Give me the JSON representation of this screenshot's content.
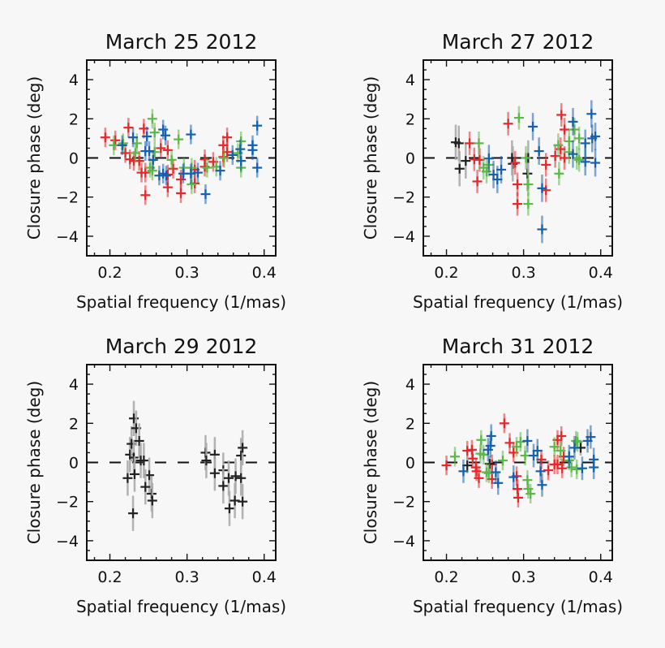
{
  "chart_data": [
    {
      "type": "scatter",
      "title": "March 25 2012",
      "xlabel": "Spatial frequency (1/mas)",
      "ylabel": "Closure phase (deg)",
      "xlim": [
        0.17,
        0.415
      ],
      "ylim": [
        -5,
        5
      ],
      "xticks": [
        "0.2",
        "0.3",
        "0.4"
      ],
      "yticks": [
        "-4",
        "-2",
        "0",
        "2",
        "4"
      ],
      "reference_line": 0,
      "series": [
        {
          "color": "#e8272a",
          "err": 0.5,
          "points": [
            [
              0.194,
              1.05
            ],
            [
              0.207,
              0.9
            ],
            [
              0.224,
              1.55
            ],
            [
              0.22,
              0.25
            ],
            [
              0.226,
              -0.07
            ],
            [
              0.231,
              -0.15
            ],
            [
              0.238,
              -0.15
            ],
            [
              0.241,
              -0.75
            ],
            [
              0.246,
              -0.75
            ],
            [
              0.244,
              1.5
            ],
            [
              0.246,
              -1.9
            ],
            [
              0.266,
              0.5
            ],
            [
              0.275,
              0.4
            ],
            [
              0.275,
              -0.85
            ],
            [
              0.275,
              -1.5
            ],
            [
              0.282,
              -0.55
            ],
            [
              0.292,
              -1.1
            ],
            [
              0.292,
              -1.8
            ],
            [
              0.31,
              -0.6
            ],
            [
              0.31,
              -1.3
            ],
            [
              0.323,
              -0.07
            ],
            [
              0.323,
              -0.45
            ],
            [
              0.334,
              -0.2
            ],
            [
              0.347,
              0.65
            ],
            [
              0.352,
              1.05
            ],
            [
              0.352,
              0.3
            ],
            [
              0.347,
              0.05
            ]
          ]
        },
        {
          "color": "#5cb848",
          "err": 0.5,
          "points": [
            [
              0.205,
              0.65
            ],
            [
              0.217,
              0.75
            ],
            [
              0.235,
              0.75
            ],
            [
              0.233,
              0.25
            ],
            [
              0.255,
              2.0
            ],
            [
              0.258,
              1.3
            ],
            [
              0.258,
              0.3
            ],
            [
              0.252,
              -0.5
            ],
            [
              0.255,
              -0.65
            ],
            [
              0.289,
              0.95
            ],
            [
              0.28,
              -0.1
            ],
            [
              0.296,
              -0.5
            ],
            [
              0.306,
              -1.35
            ],
            [
              0.306,
              -0.5
            ],
            [
              0.326,
              -0.5
            ],
            [
              0.338,
              -0.45
            ],
            [
              0.348,
              0
            ],
            [
              0.366,
              0.25
            ],
            [
              0.37,
              0.85
            ],
            [
              0.37,
              -0.5
            ]
          ]
        },
        {
          "color": "#1760b0",
          "err": 0.5,
          "points": [
            [
              0.216,
              0.65
            ],
            [
              0.23,
              1.05
            ],
            [
              0.248,
              1.1
            ],
            [
              0.246,
              0.35
            ],
            [
              0.251,
              0.35
            ],
            [
              0.256,
              -0.1
            ],
            [
              0.269,
              1.45
            ],
            [
              0.272,
              1.15
            ],
            [
              0.264,
              -0.9
            ],
            [
              0.269,
              -0.8
            ],
            [
              0.273,
              -0.9
            ],
            [
              0.305,
              1.2
            ],
            [
              0.295,
              -0.8
            ],
            [
              0.305,
              -0.8
            ],
            [
              0.314,
              -0.75
            ],
            [
              0.324,
              -1.85
            ],
            [
              0.343,
              -0.65
            ],
            [
              0.359,
              0.15
            ],
            [
              0.369,
              0.45
            ],
            [
              0.37,
              -0.15
            ],
            [
              0.385,
              0.65
            ],
            [
              0.385,
              0.4
            ],
            [
              0.391,
              1.65
            ],
            [
              0.391,
              -0.5
            ]
          ]
        }
      ]
    },
    {
      "type": "scatter",
      "title": "March 27 2012",
      "xlabel": "Spatial frequency (1/mas)",
      "ylabel": "Closure phase (deg)",
      "xlim": [
        0.17,
        0.415
      ],
      "ylim": [
        -5,
        5
      ],
      "xticks": [
        "0.2",
        "0.3",
        "0.4"
      ],
      "yticks": [
        "-4",
        "-2",
        "0",
        "2",
        "4"
      ],
      "reference_line": 0,
      "series": [
        {
          "color": "#222222",
          "err": 0.9,
          "points": [
            [
              0.212,
              0.8
            ],
            [
              0.216,
              0.75
            ],
            [
              0.217,
              -0.55
            ],
            [
              0.225,
              -0.15
            ],
            [
              0.286,
              -0.3
            ],
            [
              0.285,
              0
            ],
            [
              0.305,
              -0.8
            ],
            [
              0.306,
              0
            ]
          ]
        },
        {
          "color": "#e8272a",
          "err": 0.6,
          "points": [
            [
              0.23,
              0.75
            ],
            [
              0.236,
              -0.07
            ],
            [
              0.243,
              -0.1
            ],
            [
              0.24,
              -1.2
            ],
            [
              0.28,
              1.75
            ],
            [
              0.289,
              -0.25
            ],
            [
              0.292,
              -1.35
            ],
            [
              0.292,
              -2.35
            ],
            [
              0.329,
              -0.35
            ],
            [
              0.329,
              -1.65
            ],
            [
              0.341,
              0.1
            ],
            [
              0.348,
              0.45
            ],
            [
              0.349,
              2.2
            ],
            [
              0.353,
              1.45
            ],
            [
              0.353,
              0
            ]
          ]
        },
        {
          "color": "#5cb848",
          "err": 0.6,
          "points": [
            [
              0.242,
              0.75
            ],
            [
              0.248,
              -0.5
            ],
            [
              0.252,
              -0.7
            ],
            [
              0.255,
              -0.35
            ],
            [
              0.294,
              2.05
            ],
            [
              0.303,
              0
            ],
            [
              0.306,
              -1.35
            ],
            [
              0.306,
              -2.35
            ],
            [
              0.345,
              0.65
            ],
            [
              0.346,
              -0.8
            ],
            [
              0.359,
              0.85
            ],
            [
              0.366,
              1.45
            ],
            [
              0.369,
              0
            ],
            [
              0.372,
              1.0
            ],
            [
              0.372,
              -0.1
            ],
            [
              0.359,
              0.3
            ]
          ]
        },
        {
          "color": "#1760b0",
          "err": 0.7,
          "points": [
            [
              0.255,
              -0.03
            ],
            [
              0.261,
              -0.85
            ],
            [
              0.266,
              -1.1
            ],
            [
              0.271,
              -0.6
            ],
            [
              0.312,
              1.6
            ],
            [
              0.32,
              0.35
            ],
            [
              0.324,
              -1.55
            ],
            [
              0.324,
              -3.65
            ],
            [
              0.364,
              1.85
            ],
            [
              0.364,
              0.2
            ],
            [
              0.38,
              0.75
            ],
            [
              0.38,
              -0.2
            ],
            [
              0.388,
              2.25
            ],
            [
              0.389,
              1.0
            ],
            [
              0.393,
              1.1
            ],
            [
              0.393,
              -0.25
            ]
          ]
        }
      ]
    },
    {
      "type": "scatter",
      "title": "March 29 2012",
      "xlabel": "Spatial frequency (1/mas)",
      "ylabel": "Closure phase (deg)",
      "xlim": [
        0.17,
        0.415
      ],
      "ylim": [
        -5,
        5
      ],
      "xticks": [
        "0.2",
        "0.3",
        "0.4"
      ],
      "yticks": [
        "-4",
        "-2",
        "0",
        "2",
        "4"
      ],
      "reference_line": 0,
      "series": [
        {
          "color": "#222222",
          "err": 0.9,
          "points": [
            [
              0.223,
              -0.8
            ],
            [
              0.226,
              0.4
            ],
            [
              0.228,
              0.95
            ],
            [
              0.231,
              2.25
            ],
            [
              0.234,
              1.75
            ],
            [
              0.231,
              0.25
            ],
            [
              0.232,
              -0.6
            ],
            [
              0.23,
              -2.6
            ],
            [
              0.238,
              1.1
            ],
            [
              0.24,
              0.1
            ],
            [
              0.244,
              0.1
            ],
            [
              0.251,
              -0.65
            ],
            [
              0.246,
              -1.25
            ],
            [
              0.254,
              -1.6
            ],
            [
              0.255,
              -1.95
            ],
            [
              0.324,
              0.5
            ],
            [
              0.325,
              0.1
            ],
            [
              0.336,
              0.4
            ],
            [
              0.336,
              -0.55
            ],
            [
              0.347,
              -0.4
            ],
            [
              0.347,
              -1.2
            ],
            [
              0.354,
              -0.8
            ],
            [
              0.355,
              -2.35
            ],
            [
              0.363,
              -0.7
            ],
            [
              0.362,
              -1.95
            ],
            [
              0.37,
              0.35
            ],
            [
              0.37,
              -0.8
            ],
            [
              0.372,
              0.75
            ],
            [
              0.372,
              -2.0
            ]
          ]
        }
      ]
    },
    {
      "type": "scatter",
      "title": "March 31 2012",
      "xlabel": "Spatial frequency (1/mas)",
      "ylabel": "Closure phase (deg)",
      "xlim": [
        0.17,
        0.415
      ],
      "ylim": [
        -5,
        5
      ],
      "xticks": [
        "0.2",
        "0.3",
        "0.4"
      ],
      "yticks": [
        "-4",
        "-2",
        "0",
        "2",
        "4"
      ],
      "reference_line": 0,
      "series": [
        {
          "color": "#e8272a",
          "err": 0.5,
          "points": [
            [
              0.2,
              -0.15
            ],
            [
              0.227,
              0.6
            ],
            [
              0.233,
              0.65
            ],
            [
              0.234,
              0.2
            ],
            [
              0.238,
              -0.25
            ],
            [
              0.239,
              -0.45
            ],
            [
              0.242,
              -0.8
            ],
            [
              0.259,
              -0.1
            ],
            [
              0.259,
              -0.85
            ],
            [
              0.275,
              2.0
            ],
            [
              0.282,
              1.0
            ],
            [
              0.287,
              0.5
            ],
            [
              0.291,
              -0.7
            ],
            [
              0.292,
              -1.35
            ],
            [
              0.293,
              -1.8
            ],
            [
              0.323,
              0.15
            ],
            [
              0.332,
              -0.4
            ],
            [
              0.34,
              -0.1
            ],
            [
              0.344,
              -0.1
            ],
            [
              0.344,
              1.15
            ],
            [
              0.349,
              1.35
            ],
            [
              0.352,
              0.3
            ],
            [
              0.35,
              -0.3
            ]
          ]
        },
        {
          "color": "#222222",
          "err": 0.4,
          "points": [
            [
              0.227,
              -0.15
            ],
            [
              0.256,
              -0.07
            ],
            [
              0.374,
              0.75
            ]
          ]
        },
        {
          "color": "#5cb848",
          "err": 0.5,
          "points": [
            [
              0.211,
              0.3
            ],
            [
              0.245,
              1.15
            ],
            [
              0.244,
              0.45
            ],
            [
              0.248,
              0.4
            ],
            [
              0.252,
              -0.5
            ],
            [
              0.255,
              -0.55
            ],
            [
              0.273,
              0.1
            ],
            [
              0.291,
              0.8
            ],
            [
              0.296,
              1.05
            ],
            [
              0.302,
              0.35
            ],
            [
              0.305,
              -0.9
            ],
            [
              0.306,
              -1.35
            ],
            [
              0.309,
              -1.6
            ],
            [
              0.34,
              0.8
            ],
            [
              0.348,
              0.6
            ],
            [
              0.359,
              0.1
            ],
            [
              0.362,
              -0.25
            ],
            [
              0.368,
              1.1
            ],
            [
              0.37,
              1.05
            ],
            [
              0.369,
              -0.35
            ]
          ]
        },
        {
          "color": "#1760b0",
          "err": 0.6,
          "points": [
            [
              0.222,
              -0.45
            ],
            [
              0.254,
              0.65
            ],
            [
              0.257,
              0.85
            ],
            [
              0.258,
              1.35
            ],
            [
              0.264,
              -0.5
            ],
            [
              0.267,
              -1.05
            ],
            [
              0.287,
              -0.75
            ],
            [
              0.305,
              1.1
            ],
            [
              0.313,
              0.35
            ],
            [
              0.318,
              0.6
            ],
            [
              0.322,
              -0.45
            ],
            [
              0.324,
              -1.15
            ],
            [
              0.359,
              0.3
            ],
            [
              0.366,
              0.75
            ],
            [
              0.376,
              -0.3
            ],
            [
              0.383,
              1.1
            ],
            [
              0.387,
              1.3
            ],
            [
              0.391,
              0.15
            ],
            [
              0.391,
              -0.25
            ]
          ]
        }
      ]
    }
  ]
}
